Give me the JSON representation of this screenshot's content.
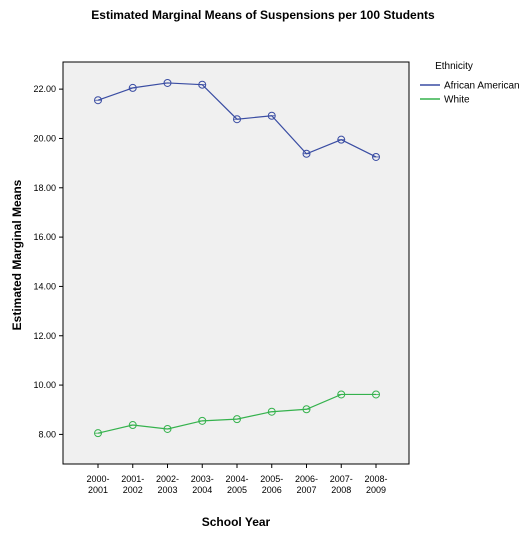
{
  "chart_data": {
    "type": "line",
    "title": "Estimated Marginal Means of Suspensions per 100 Students",
    "xlabel": "School Year",
    "ylabel": "Estimated Marginal Means",
    "categories": [
      [
        "2000-",
        "2001"
      ],
      [
        "2001-",
        "2002"
      ],
      [
        "2002-",
        "2003"
      ],
      [
        "2003-",
        "2004"
      ],
      [
        "2004-",
        "2005"
      ],
      [
        "2005-",
        "2006"
      ],
      [
        "2006-",
        "2007"
      ],
      [
        "2007-",
        "2008"
      ],
      [
        "2008-",
        "2009"
      ]
    ],
    "ylim": [
      6.8,
      23.1
    ],
    "yticks": [
      "8.00",
      "10.00",
      "12.00",
      "14.00",
      "16.00",
      "18.00",
      "20.00",
      "22.00"
    ],
    "legend_title": "Ethnicity",
    "legend_placement": "right",
    "plot_background": "#f0f0f0",
    "series": [
      {
        "name": "African American",
        "color": "#3a4da3",
        "values": [
          21.55,
          22.05,
          22.25,
          22.18,
          20.78,
          20.92,
          19.38,
          19.95,
          19.25
        ]
      },
      {
        "name": "White",
        "color": "#35b24d",
        "values": [
          8.05,
          8.38,
          8.22,
          8.55,
          8.62,
          8.92,
          9.02,
          9.62,
          9.62
        ]
      }
    ]
  }
}
